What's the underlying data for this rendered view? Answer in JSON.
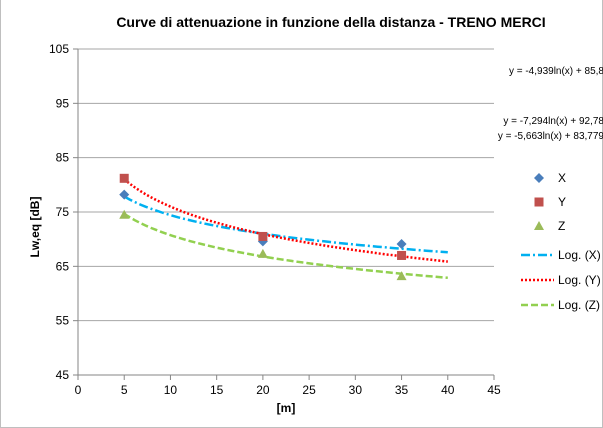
{
  "chart_data": {
    "type": "scatter",
    "title": "Curve di attenuazione in funzione della distanza - TRENO MERCI",
    "xlabel": "[m]",
    "ylabel": "Lw,eq [dB]",
    "xlim": [
      0,
      45
    ],
    "ylim": [
      45,
      105
    ],
    "xticks": [
      0,
      5,
      10,
      15,
      20,
      25,
      30,
      35,
      40,
      45
    ],
    "yticks": [
      45,
      55,
      65,
      75,
      85,
      95,
      105
    ],
    "grid": "horizontal",
    "legend_position": "right",
    "series": [
      {
        "name": "X",
        "marker": "diamond",
        "color": "#4a7ebb",
        "x": [
          5,
          20,
          35
        ],
        "y": [
          78.2,
          69.6,
          69.1
        ]
      },
      {
        "name": "Y",
        "marker": "square",
        "color": "#c0504d",
        "x": [
          5,
          20,
          35
        ],
        "y": [
          81.2,
          70.5,
          67.0
        ]
      },
      {
        "name": "Z",
        "marker": "triangle",
        "color": "#9bbb59",
        "x": [
          5,
          20,
          35
        ],
        "y": [
          74.5,
          67.3,
          63.2
        ]
      }
    ],
    "trendlines": [
      {
        "name": "Log. (X)",
        "a": -4.939,
        "b": 85.8,
        "equation": "y = -4,939ln(x) + 85,8",
        "color": "#00b0f0",
        "dash": "9,3,2,3",
        "x_range": [
          5,
          40
        ]
      },
      {
        "name": "Log. (Y)",
        "a": -7.294,
        "b": 92.78,
        "equation": "y = -7,294ln(x) + 92,78",
        "color": "#ff0000",
        "dash": "2,2",
        "x_range": [
          5,
          40
        ]
      },
      {
        "name": "Log. (Z)",
        "a": -5.663,
        "b": 83.779,
        "equation": "y = -5,663ln(x) + 83,779",
        "color": "#92d050",
        "dash": "7,3",
        "x_range": [
          5,
          40
        ]
      }
    ]
  }
}
